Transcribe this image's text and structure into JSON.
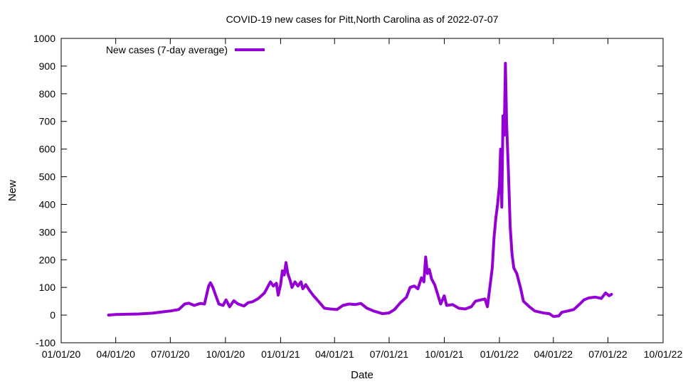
{
  "chart_data": {
    "type": "line",
    "title": "COVID-19 new cases for Pitt,North Carolina as of 2022-07-07",
    "xlabel": "Date",
    "ylabel": "New",
    "ylim": [
      -100,
      1000
    ],
    "xlim": [
      "2020-01-01",
      "2022-10-01"
    ],
    "grid": false,
    "legend": "top-left",
    "y_ticks": [
      -100,
      0,
      100,
      200,
      300,
      400,
      500,
      600,
      700,
      800,
      900,
      1000
    ],
    "x_ticks": [
      {
        "date": "2020-01-01",
        "label": "01/01/20"
      },
      {
        "date": "2020-04-01",
        "label": "04/01/20"
      },
      {
        "date": "2020-07-01",
        "label": "07/01/20"
      },
      {
        "date": "2020-10-01",
        "label": "10/01/20"
      },
      {
        "date": "2021-01-01",
        "label": "01/01/21"
      },
      {
        "date": "2021-04-01",
        "label": "04/01/21"
      },
      {
        "date": "2021-07-01",
        "label": "07/01/21"
      },
      {
        "date": "2021-10-01",
        "label": "10/01/21"
      },
      {
        "date": "2022-01-01",
        "label": "01/01/22"
      },
      {
        "date": "2022-04-01",
        "label": "04/01/22"
      },
      {
        "date": "2022-07-01",
        "label": "07/01/22"
      },
      {
        "date": "2022-10-01",
        "label": "10/01/22"
      }
    ],
    "series": [
      {
        "name": "New cases (7-day average)",
        "color": "#9400d3",
        "points": [
          [
            "2020-03-20",
            0
          ],
          [
            "2020-04-01",
            2
          ],
          [
            "2020-04-20",
            3
          ],
          [
            "2020-05-10",
            4
          ],
          [
            "2020-06-01",
            7
          ],
          [
            "2020-06-20",
            12
          ],
          [
            "2020-07-01",
            15
          ],
          [
            "2020-07-15",
            20
          ],
          [
            "2020-07-25",
            40
          ],
          [
            "2020-08-01",
            43
          ],
          [
            "2020-08-10",
            35
          ],
          [
            "2020-08-20",
            42
          ],
          [
            "2020-08-27",
            40
          ],
          [
            "2020-09-03",
            105
          ],
          [
            "2020-09-06",
            117
          ],
          [
            "2020-09-10",
            100
          ],
          [
            "2020-09-15",
            70
          ],
          [
            "2020-09-20",
            40
          ],
          [
            "2020-09-27",
            35
          ],
          [
            "2020-10-02",
            55
          ],
          [
            "2020-10-08",
            30
          ],
          [
            "2020-10-15",
            52
          ],
          [
            "2020-10-22",
            40
          ],
          [
            "2020-11-01",
            33
          ],
          [
            "2020-11-08",
            45
          ],
          [
            "2020-11-15",
            48
          ],
          [
            "2020-11-25",
            60
          ],
          [
            "2020-12-05",
            80
          ],
          [
            "2020-12-10",
            100
          ],
          [
            "2020-12-15",
            120
          ],
          [
            "2020-12-20",
            105
          ],
          [
            "2020-12-25",
            115
          ],
          [
            "2020-12-28",
            72
          ],
          [
            "2021-01-01",
            110
          ],
          [
            "2021-01-04",
            160
          ],
          [
            "2021-01-07",
            145
          ],
          [
            "2021-01-10",
            190
          ],
          [
            "2021-01-13",
            150
          ],
          [
            "2021-01-17",
            125
          ],
          [
            "2021-01-20",
            100
          ],
          [
            "2021-01-25",
            120
          ],
          [
            "2021-01-30",
            105
          ],
          [
            "2021-02-04",
            120
          ],
          [
            "2021-02-07",
            95
          ],
          [
            "2021-02-12",
            110
          ],
          [
            "2021-02-18",
            90
          ],
          [
            "2021-02-25",
            70
          ],
          [
            "2021-03-05",
            50
          ],
          [
            "2021-03-15",
            25
          ],
          [
            "2021-03-25",
            22
          ],
          [
            "2021-04-05",
            20
          ],
          [
            "2021-04-15",
            35
          ],
          [
            "2021-04-25",
            40
          ],
          [
            "2021-05-05",
            38
          ],
          [
            "2021-05-15",
            42
          ],
          [
            "2021-05-25",
            25
          ],
          [
            "2021-06-05",
            15
          ],
          [
            "2021-06-20",
            5
          ],
          [
            "2021-07-01",
            8
          ],
          [
            "2021-07-10",
            20
          ],
          [
            "2021-07-20",
            45
          ],
          [
            "2021-07-30",
            65
          ],
          [
            "2021-08-05",
            100
          ],
          [
            "2021-08-12",
            105
          ],
          [
            "2021-08-18",
            95
          ],
          [
            "2021-08-24",
            135
          ],
          [
            "2021-08-28",
            120
          ],
          [
            "2021-08-31",
            210
          ],
          [
            "2021-09-03",
            150
          ],
          [
            "2021-09-06",
            165
          ],
          [
            "2021-09-10",
            130
          ],
          [
            "2021-09-15",
            110
          ],
          [
            "2021-09-20",
            75
          ],
          [
            "2021-09-25",
            40
          ],
          [
            "2021-10-01",
            70
          ],
          [
            "2021-10-05",
            35
          ],
          [
            "2021-10-15",
            38
          ],
          [
            "2021-10-25",
            25
          ],
          [
            "2021-11-05",
            22
          ],
          [
            "2021-11-15",
            30
          ],
          [
            "2021-11-22",
            50
          ],
          [
            "2021-12-01",
            55
          ],
          [
            "2021-12-08",
            58
          ],
          [
            "2021-12-12",
            30
          ],
          [
            "2021-12-16",
            100
          ],
          [
            "2021-12-20",
            170
          ],
          [
            "2021-12-23",
            280
          ],
          [
            "2021-12-26",
            350
          ],
          [
            "2021-12-29",
            400
          ],
          [
            "2022-01-01",
            470
          ],
          [
            "2022-01-03",
            600
          ],
          [
            "2022-01-05",
            390
          ],
          [
            "2022-01-07",
            720
          ],
          [
            "2022-01-09",
            650
          ],
          [
            "2022-01-11",
            910
          ],
          [
            "2022-01-13",
            690
          ],
          [
            "2022-01-16",
            520
          ],
          [
            "2022-01-19",
            320
          ],
          [
            "2022-01-22",
            220
          ],
          [
            "2022-01-25",
            170
          ],
          [
            "2022-01-30",
            150
          ],
          [
            "2022-02-05",
            100
          ],
          [
            "2022-02-10",
            50
          ],
          [
            "2022-02-20",
            30
          ],
          [
            "2022-03-01",
            15
          ],
          [
            "2022-03-15",
            8
          ],
          [
            "2022-03-25",
            5
          ],
          [
            "2022-04-01",
            -5
          ],
          [
            "2022-04-10",
            -3
          ],
          [
            "2022-04-15",
            10
          ],
          [
            "2022-04-25",
            15
          ],
          [
            "2022-05-05",
            20
          ],
          [
            "2022-05-15",
            40
          ],
          [
            "2022-05-22",
            55
          ],
          [
            "2022-05-30",
            62
          ],
          [
            "2022-06-10",
            65
          ],
          [
            "2022-06-20",
            60
          ],
          [
            "2022-06-27",
            80
          ],
          [
            "2022-07-03",
            70
          ],
          [
            "2022-07-07",
            75
          ]
        ]
      }
    ]
  }
}
